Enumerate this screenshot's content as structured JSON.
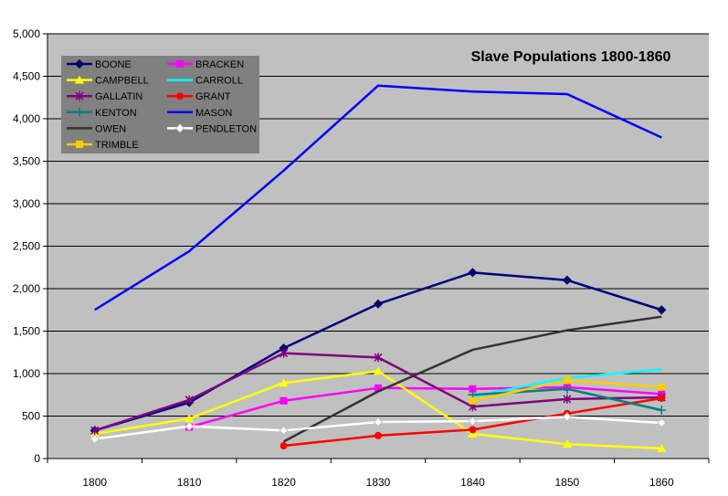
{
  "chart_data": {
    "type": "line",
    "title": "Slave Populations 1800-1860",
    "xlabel": "",
    "ylabel": "",
    "categories": [
      "1800",
      "1810",
      "1820",
      "1830",
      "1840",
      "1850",
      "1860"
    ],
    "y_ticks": [
      "0",
      "500",
      "1,000",
      "1,500",
      "2,000",
      "2,500",
      "3,000",
      "3,500",
      "4,000",
      "4,500",
      "5,000"
    ],
    "ylim": [
      0,
      5000
    ],
    "grid": true,
    "legend_position": "top-left",
    "plot_background": "#c0c0c0",
    "series": [
      {
        "name": "BOONE",
        "color": "#000080",
        "marker": "diamond",
        "values": [
          330,
          660,
          1300,
          1820,
          2190,
          2100,
          1750
        ]
      },
      {
        "name": "BRACKEN",
        "color": "#ff00ff",
        "marker": "square",
        "values": [
          null,
          370,
          680,
          830,
          820,
          840,
          760
        ]
      },
      {
        "name": "CAMPBELL",
        "color": "#ffff00",
        "marker": "triangle",
        "values": [
          290,
          470,
          890,
          1030,
          290,
          170,
          120
        ]
      },
      {
        "name": "CARROLL",
        "color": "#00ffff",
        "marker": "none",
        "values": [
          null,
          null,
          null,
          null,
          730,
          950,
          1050
        ]
      },
      {
        "name": "GALLATIN",
        "color": "#800080",
        "marker": "star",
        "values": [
          330,
          690,
          1240,
          1190,
          610,
          700,
          720
        ]
      },
      {
        "name": "GRANT",
        "color": "#ff0000",
        "marker": "circle",
        "values": [
          null,
          null,
          150,
          270,
          340,
          530,
          710
        ]
      },
      {
        "name": "KENTON",
        "color": "#008080",
        "marker": "plus",
        "values": [
          null,
          null,
          null,
          null,
          750,
          820,
          570
        ]
      },
      {
        "name": "MASON",
        "color": "#0000ff",
        "marker": "none",
        "values": [
          1750,
          2440,
          3390,
          4390,
          4320,
          4290,
          3780
        ]
      },
      {
        "name": "OWEN",
        "color": "#333333",
        "marker": "none",
        "values": [
          null,
          null,
          200,
          790,
          1280,
          1510,
          1670
        ]
      },
      {
        "name": "PENDLETON",
        "color": "#ffffff",
        "marker": "diamond",
        "values": [
          230,
          380,
          330,
          430,
          440,
          490,
          420
        ]
      },
      {
        "name": "TRIMBLE",
        "color": "#ffcc00",
        "marker": "square",
        "values": [
          null,
          null,
          null,
          null,
          680,
          920,
          840
        ]
      }
    ]
  }
}
